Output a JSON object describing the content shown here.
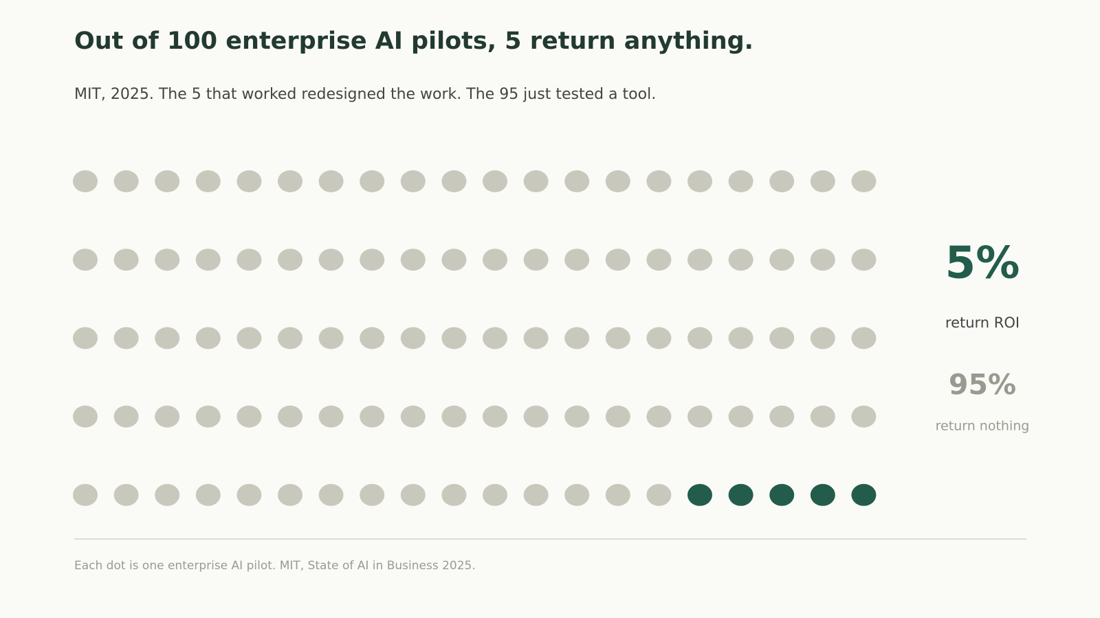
{
  "chart_data": {
    "type": "waffle",
    "title": "Out of 100 enterprise AI pilots, 5 return anything.",
    "subtitle": "MIT, 2025. The 5 that worked redesigned the work. The 95 just tested a tool.",
    "categories": [
      "return ROI",
      "return nothing"
    ],
    "values": [
      5,
      95
    ],
    "value_labels": [
      "5%",
      "95%"
    ],
    "colors": [
      "#235c4b",
      "#c8c8bc"
    ],
    "note": "Each dot is one enterprise AI pilot. MIT, State of AI in Business 2025."
  }
}
